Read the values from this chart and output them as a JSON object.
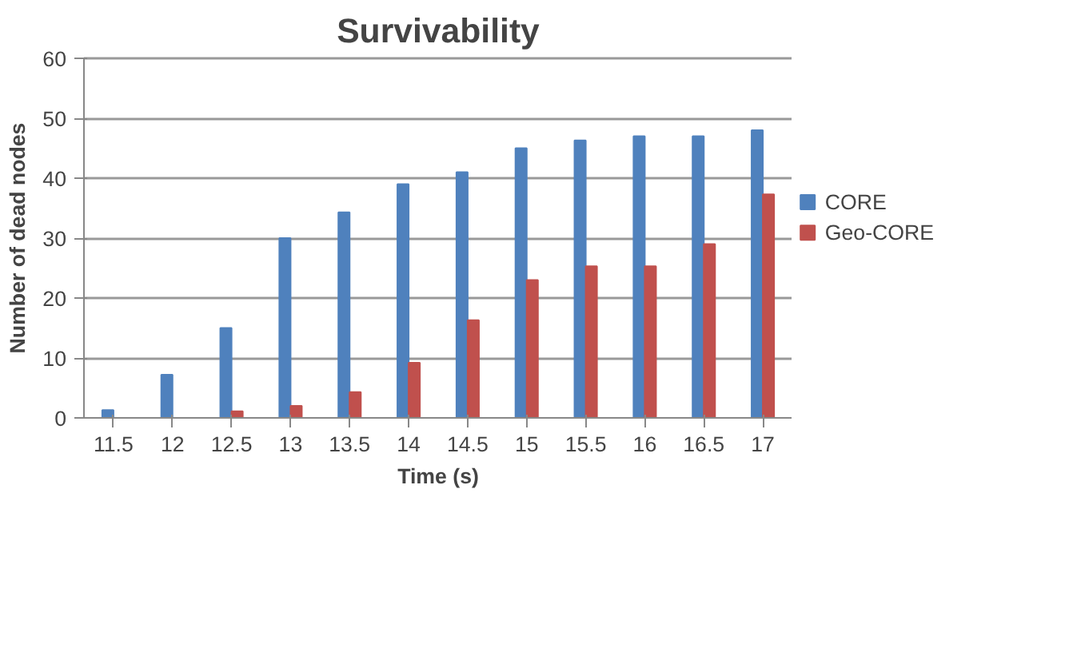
{
  "chart_data": {
    "type": "bar",
    "title": "Survivability",
    "xlabel": "Time (s)",
    "ylabel": "Number of dead nodes",
    "categories": [
      "11.5",
      "12",
      "12.5",
      "13",
      "13.5",
      "14",
      "14.5",
      "15",
      "15.5",
      "16",
      "16.5",
      "17"
    ],
    "series": [
      {
        "name": "CORE",
        "color": "#4f81bd",
        "values": [
          1.3,
          7.2,
          15,
          30,
          34.3,
          39,
          41,
          45,
          46.3,
          47,
          47,
          48
        ]
      },
      {
        "name": "Geo-CORE",
        "color": "#c0504d",
        "values": [
          0,
          0,
          1.1,
          2,
          4.3,
          9.2,
          16.3,
          23,
          25.3,
          25.3,
          29,
          37.3
        ]
      }
    ],
    "ylim": [
      0,
      60
    ],
    "yticks": [
      0,
      10,
      20,
      30,
      40,
      50,
      60
    ],
    "grid": "y",
    "legend": "right"
  }
}
